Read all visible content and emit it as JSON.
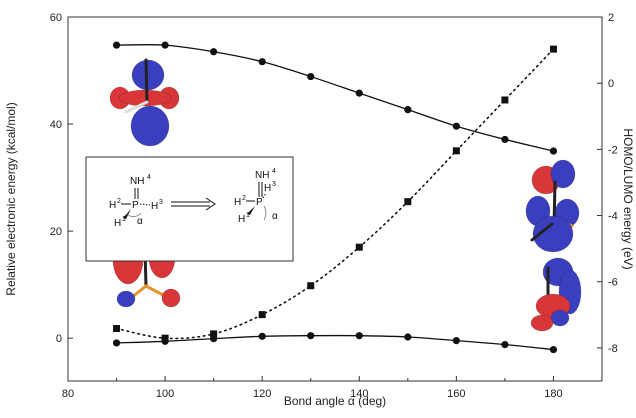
{
  "chart_data": {
    "type": "line",
    "xlabel": "Bond angle α (deg)",
    "ylabel": "Relative electronic energy (kcal/mol)",
    "y2label": "HOMO/LUMO energy (eV)",
    "xlim": [
      80,
      190
    ],
    "ylim": [
      -8,
      60
    ],
    "y2lim": [
      -9,
      2
    ],
    "xticks": [
      80,
      100,
      120,
      140,
      160,
      180
    ],
    "yticks": [
      0,
      20,
      40,
      60
    ],
    "y2ticks": [
      -8,
      -6,
      -4,
      -2,
      0,
      2
    ],
    "grid": false,
    "series": [
      {
        "axis": "right",
        "marker": "circle",
        "line": "solid",
        "x": [
          90,
          100,
          110,
          120,
          130,
          140,
          150,
          160,
          170,
          180
        ],
        "y": [
          1.15,
          1.15,
          0.95,
          0.65,
          0.2,
          -0.3,
          -0.8,
          -1.3,
          -1.7,
          -2.05
        ]
      },
      {
        "axis": "left",
        "marker": "square",
        "line": "dotted",
        "x": [
          90,
          100,
          110,
          120,
          130,
          140,
          150,
          160,
          170,
          180
        ],
        "y": [
          1.8,
          0.0,
          0.8,
          4.4,
          9.8,
          17.0,
          25.5,
          35.0,
          44.5,
          54.0
        ]
      },
      {
        "axis": "right",
        "marker": "circle",
        "line": "solid",
        "x": [
          90,
          100,
          110,
          120,
          130,
          140,
          150,
          160,
          170,
          180
        ],
        "y": [
          -7.85,
          -7.8,
          -7.72,
          -7.65,
          -7.63,
          -7.63,
          -7.67,
          -7.78,
          -7.9,
          -8.05
        ]
      }
    ]
  },
  "inset": {
    "left_labels": {
      "nh": "NH",
      "nh_sup": "4",
      "h2": "H",
      "h2_sup": "2",
      "p": "P",
      "h3": "H",
      "h3_sup": "3",
      "h1": "H",
      "h1_sup": "1",
      "alpha": "α"
    },
    "right_labels": {
      "nh": "NH",
      "nh_sup": "4",
      "h3": "H",
      "h3_sup": "3",
      "h2": "H",
      "h2_sup": "2",
      "p": "P",
      "h1": "H",
      "h1_sup": "1",
      "alpha": "α"
    }
  },
  "colors": {
    "lobe_blue": "#3a3fc0",
    "lobe_red": "#d9363a",
    "bond_orange": "#e5932a"
  }
}
